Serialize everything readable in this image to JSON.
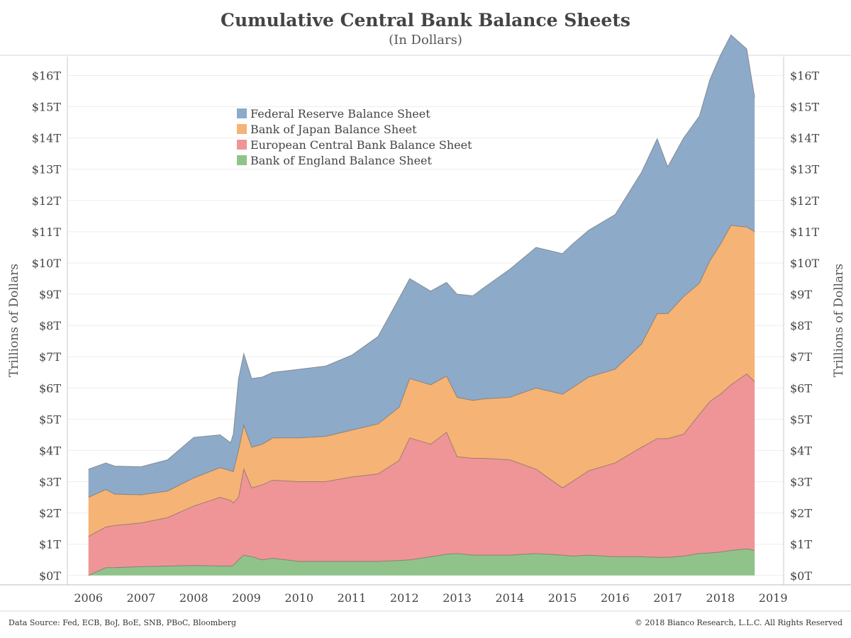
{
  "chart_data": {
    "type": "area",
    "stacked": true,
    "title": "Cumulative Central Bank Balance Sheets",
    "subtitle": "(In Dollars)",
    "ylabel": "Trillions of Dollars",
    "ylim": [
      -0.3,
      16.6
    ],
    "xlim": [
      2005.6,
      2019.2
    ],
    "grid": true,
    "legend_position": "top-left",
    "x_ticks": [
      "2006",
      "2007",
      "2008",
      "2009",
      "2010",
      "2011",
      "2012",
      "2013",
      "2014",
      "2015",
      "2016",
      "2017",
      "2018",
      "2019"
    ],
    "y_ticks": [
      "$0T",
      "$1T",
      "$2T",
      "$3T",
      "$4T",
      "$5T",
      "$6T",
      "$7T",
      "$8T",
      "$9T",
      "$10T",
      "$11T",
      "$12T",
      "$13T",
      "$14T",
      "$15T",
      "$16T"
    ],
    "x": [
      2006.0,
      2006.33,
      2006.5,
      2007.0,
      2007.5,
      2008.0,
      2008.5,
      2008.7,
      2008.75,
      2008.85,
      2008.95,
      2009.1,
      2009.3,
      2009.5,
      2010.0,
      2010.5,
      2011.0,
      2011.5,
      2011.9,
      2012.1,
      2012.5,
      2012.8,
      2013.0,
      2013.3,
      2013.5,
      2014.0,
      2014.5,
      2015.0,
      2015.2,
      2015.5,
      2016.0,
      2016.5,
      2016.8,
      2017.0,
      2017.3,
      2017.6,
      2017.8,
      2018.0,
      2018.2,
      2018.5,
      2018.65
    ],
    "series": [
      {
        "name": "Bank of England Balance Sheet",
        "color": "#90c38a",
        "values": [
          0,
          0.25,
          0.25,
          0.28,
          0.3,
          0.32,
          0.3,
          0.3,
          0.32,
          0.5,
          0.65,
          0.6,
          0.5,
          0.55,
          0.45,
          0.45,
          0.45,
          0.45,
          0.48,
          0.5,
          0.6,
          0.68,
          0.7,
          0.65,
          0.65,
          0.65,
          0.7,
          0.65,
          0.62,
          0.65,
          0.6,
          0.6,
          0.58,
          0.58,
          0.62,
          0.7,
          0.72,
          0.75,
          0.8,
          0.85,
          0.8
        ]
      },
      {
        "name": "European Central Bank Balance Sheet",
        "color": "#ef9597",
        "values": [
          1.25,
          1.3,
          1.35,
          1.4,
          1.55,
          1.9,
          2.2,
          2.1,
          2.0,
          2.0,
          2.75,
          2.2,
          2.4,
          2.5,
          2.55,
          2.55,
          2.7,
          2.8,
          3.2,
          3.9,
          3.6,
          3.9,
          3.1,
          3.1,
          3.1,
          3.05,
          2.7,
          2.15,
          2.4,
          2.7,
          3.0,
          3.5,
          3.8,
          3.8,
          3.9,
          4.45,
          4.85,
          5.05,
          5.3,
          5.6,
          5.4
        ]
      },
      {
        "name": "Bank of Japan Balance Sheet",
        "color": "#f5b375",
        "values": [
          1.25,
          1.2,
          1.0,
          0.9,
          0.85,
          0.9,
          0.95,
          0.95,
          1.0,
          1.5,
          1.4,
          1.3,
          1.3,
          1.35,
          1.4,
          1.45,
          1.5,
          1.6,
          1.7,
          1.9,
          1.9,
          1.8,
          1.9,
          1.85,
          1.9,
          2.0,
          2.6,
          3.0,
          3.0,
          3.0,
          3.0,
          3.3,
          4.0,
          4.0,
          4.4,
          4.2,
          4.5,
          4.8,
          5.1,
          4.7,
          4.8
        ]
      },
      {
        "name": "Federal Reserve Balance Sheet",
        "color": "#8eaac9",
        "values": [
          0.9,
          0.85,
          0.9,
          0.9,
          1.0,
          1.3,
          1.05,
          0.9,
          1.2,
          2.3,
          2.3,
          2.2,
          2.15,
          2.1,
          2.2,
          2.25,
          2.4,
          2.8,
          3.5,
          3.2,
          3.0,
          3.0,
          3.3,
          3.35,
          3.55,
          4.1,
          4.5,
          4.5,
          4.6,
          4.7,
          4.95,
          5.5,
          5.6,
          4.7,
          5.08,
          5.35,
          5.8,
          6.05,
          6.1,
          5.7,
          4.3
        ]
      }
    ]
  },
  "footer": {
    "source": "Data Source: Fed, ECB, BoJ, BoE, SNB, PBoC, Bloomberg",
    "copyright": "© 2018 Bianco Research, L.L.C. All Rights Reserved"
  }
}
